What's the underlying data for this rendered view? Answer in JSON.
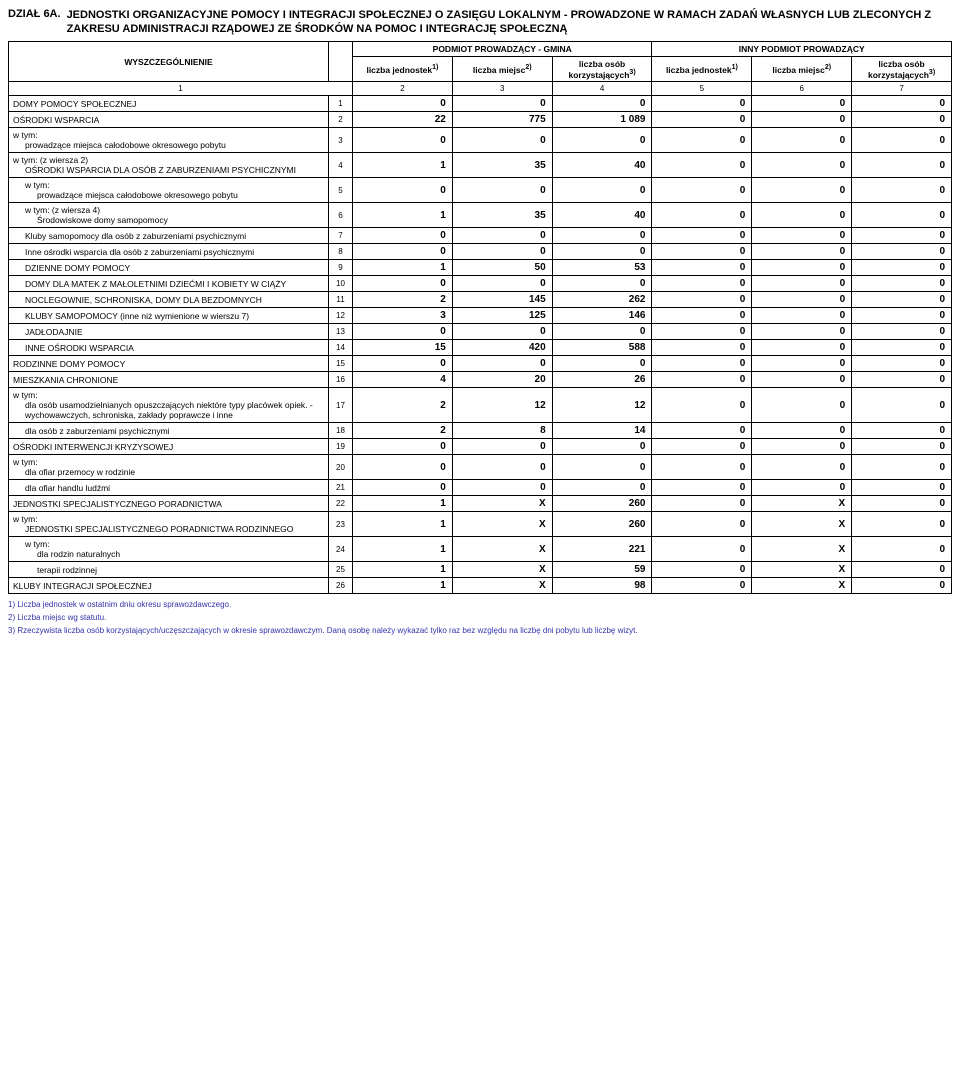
{
  "section": {
    "code": "DZIAŁ 6A.",
    "title": "JEDNOSTKI ORGANIZACYJNE POMOCY I INTEGRACJI SPOŁECZNEJ O ZASIĘGU LOKALNYM - PROWADZONE W RAMACH ZADAŃ WŁASNYCH LUB ZLECONYCH Z ZAKRESU ADMINISTRACJI RZĄDOWEJ ZE ŚRODKÓW NA POMOC I INTEGRACJĘ SPOŁECZNĄ"
  },
  "headers": {
    "wyszczegolnienie": "WYSZCZEGÓLNIENIE",
    "group1": "PODMIOT PROWADZĄCY - GMINA",
    "group2": "INNY PODMIOT PROWADZĄCY",
    "liczba_jednostek": "liczba jednostek",
    "liczba_miejsc": "liczba miejsc",
    "liczba_osob": "liczba osób korzystających",
    "sup1": "1)",
    "sup2": "2)",
    "sup3": "3)"
  },
  "colnums": [
    "1",
    "2",
    "3",
    "4",
    "5",
    "6",
    "7"
  ],
  "rows": [
    {
      "label": "DOMY POMOCY SPOŁECZNEJ",
      "indent": 0,
      "n": "1",
      "v": [
        "0",
        "0",
        "0",
        "0",
        "0",
        "0"
      ]
    },
    {
      "label": "OŚRODKI WSPARCIA",
      "indent": 0,
      "n": "2",
      "v": [
        "22",
        "775",
        "1 089",
        "0",
        "0",
        "0"
      ]
    },
    {
      "label": "w tym:\n    prowadzące miejsca całodobowe okresowego pobytu",
      "indent": 0,
      "n": "3",
      "v": [
        "0",
        "0",
        "0",
        "0",
        "0",
        "0"
      ]
    },
    {
      "label": "w tym: (z wiersza 2)\n    OŚRODKI WSPARCIA DLA OSÓB Z ZABURZENIAMI PSYCHICZNYMI",
      "indent": 0,
      "n": "4",
      "v": [
        "1",
        "35",
        "40",
        "0",
        "0",
        "0"
      ]
    },
    {
      "label": "w tym:\n    prowadzące miejsca całodobowe okresowego pobytu",
      "indent": 1,
      "n": "5",
      "v": [
        "0",
        "0",
        "0",
        "0",
        "0",
        "0"
      ]
    },
    {
      "label": "w tym: (z wiersza 4)\n    Środowiskowe domy samopomocy",
      "indent": 1,
      "n": "6",
      "v": [
        "1",
        "35",
        "40",
        "0",
        "0",
        "0"
      ]
    },
    {
      "label": "Kluby samopomocy dla osób z zaburzeniami psychicznymi",
      "indent": 1,
      "n": "7",
      "v": [
        "0",
        "0",
        "0",
        "0",
        "0",
        "0"
      ]
    },
    {
      "label": "Inne ośrodki wsparcia dla osób z zaburzeniami psychicznymi",
      "indent": 1,
      "n": "8",
      "v": [
        "0",
        "0",
        "0",
        "0",
        "0",
        "0"
      ]
    },
    {
      "label": "DZIENNE DOMY POMOCY",
      "indent": 1,
      "n": "9",
      "v": [
        "1",
        "50",
        "53",
        "0",
        "0",
        "0"
      ]
    },
    {
      "label": "DOMY DLA MATEK Z MAŁOLETNIMI DZIEĆMI I KOBIETY W CIĄŻY",
      "indent": 1,
      "n": "10",
      "v": [
        "0",
        "0",
        "0",
        "0",
        "0",
        "0"
      ]
    },
    {
      "label": "NOCLEGOWNIE, SCHRONISKA, DOMY DLA BEZDOMNYCH",
      "indent": 1,
      "n": "11",
      "v": [
        "2",
        "145",
        "262",
        "0",
        "0",
        "0"
      ]
    },
    {
      "label": "KLUBY SAMOPOMOCY (inne niż wymienione w wierszu 7)",
      "indent": 1,
      "n": "12",
      "v": [
        "3",
        "125",
        "146",
        "0",
        "0",
        "0"
      ]
    },
    {
      "label": "JADŁODAJNIE",
      "indent": 1,
      "n": "13",
      "v": [
        "0",
        "0",
        "0",
        "0",
        "0",
        "0"
      ]
    },
    {
      "label": "INNE OŚRODKI WSPARCIA",
      "indent": 1,
      "n": "14",
      "v": [
        "15",
        "420",
        "588",
        "0",
        "0",
        "0"
      ]
    },
    {
      "label": "RODZINNE DOMY POMOCY",
      "indent": 0,
      "n": "15",
      "v": [
        "0",
        "0",
        "0",
        "0",
        "0",
        "0"
      ]
    },
    {
      "label": "MIESZKANIA CHRONIONE",
      "indent": 0,
      "n": "16",
      "v": [
        "4",
        "20",
        "26",
        "0",
        "0",
        "0"
      ]
    },
    {
      "label": "w tym:\n    dla osób usamodzielnianych opuszczających niektóre typy placówek opiek. - wychowawczych, schroniska, zakłady poprawcze i inne",
      "indent": 0,
      "n": "17",
      "v": [
        "2",
        "12",
        "12",
        "0",
        "0",
        "0"
      ]
    },
    {
      "label": "dla osób z zaburzeniami psychicznymi",
      "indent": 1,
      "n": "18",
      "v": [
        "2",
        "8",
        "14",
        "0",
        "0",
        "0"
      ]
    },
    {
      "label": "OŚRODKI INTERWENCJI KRYZYSOWEJ",
      "indent": 0,
      "n": "19",
      "v": [
        "0",
        "0",
        "0",
        "0",
        "0",
        "0"
      ]
    },
    {
      "label": "w tym:\n    dla ofiar przemocy w rodzinie",
      "indent": 0,
      "n": "20",
      "v": [
        "0",
        "0",
        "0",
        "0",
        "0",
        "0"
      ]
    },
    {
      "label": "dla ofiar handlu ludźmi",
      "indent": 1,
      "n": "21",
      "v": [
        "0",
        "0",
        "0",
        "0",
        "0",
        "0"
      ]
    },
    {
      "label": "JEDNOSTKI SPECJALISTYCZNEGO PORADNICTWA",
      "indent": 0,
      "n": "22",
      "v": [
        "1",
        "X",
        "260",
        "0",
        "X",
        "0"
      ]
    },
    {
      "label": "w tym:\n    JEDNOSTKI SPECJALISTYCZNEGO PORADNICTWA RODZINNEGO",
      "indent": 0,
      "n": "23",
      "v": [
        "1",
        "X",
        "260",
        "0",
        "X",
        "0"
      ]
    },
    {
      "label": "w tym:\n    dla rodzin naturalnych",
      "indent": 1,
      "n": "24",
      "v": [
        "1",
        "X",
        "221",
        "0",
        "X",
        "0"
      ]
    },
    {
      "label": "terapii rodzinnej",
      "indent": 2,
      "n": "25",
      "v": [
        "1",
        "X",
        "59",
        "0",
        "X",
        "0"
      ]
    },
    {
      "label": "KLUBY INTEGRACJI SPOŁECZNEJ",
      "indent": 0,
      "n": "26",
      "v": [
        "1",
        "X",
        "98",
        "0",
        "X",
        "0"
      ]
    }
  ],
  "footnotes": [
    "1) Liczba jednostek w ostatnim dniu okresu sprawozdawczego.",
    "2) Liczba miejsc wg statutu.",
    "3) Rzeczywista liczba osób korzystających/uczęszczających w okresie sprawozdawczym. Daną osobę należy wykazać tylko raz bez względu na liczbę dni pobytu lub liczbę wizyt."
  ]
}
